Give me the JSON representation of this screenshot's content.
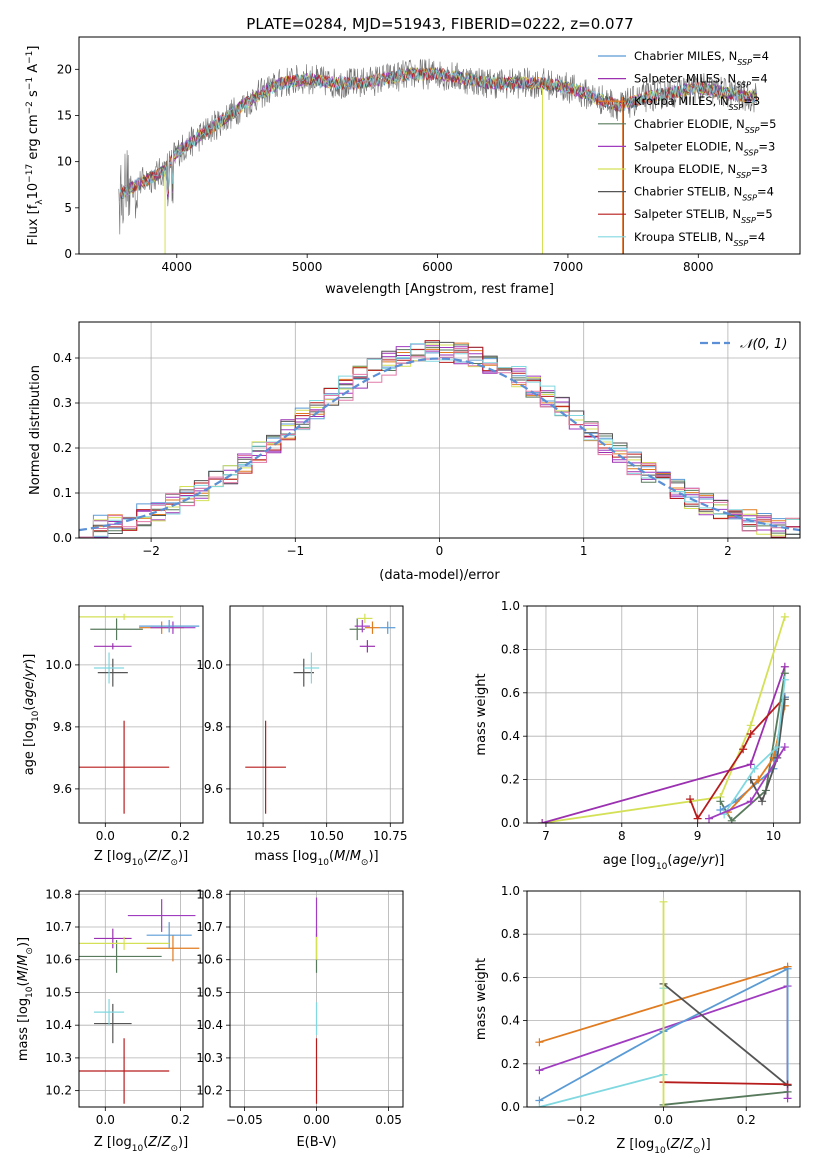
{
  "figure": {
    "title": "PLATE=0284, MJD=51943, FIBERID=0222, z=0.077"
  },
  "models": [
    {
      "name": "Chabrier MILES",
      "nssp": "4",
      "color": "#5b9bd5"
    },
    {
      "name": "Salpeter MILES",
      "nssp": "4",
      "color": "#9b30b0"
    },
    {
      "name": "Kroupa MILES",
      "nssp": "3",
      "color": "#e07b20"
    },
    {
      "name": "Chabrier ELODIE",
      "nssp": "5",
      "color": "#587a5c"
    },
    {
      "name": "Salpeter ELODIE",
      "nssp": "3",
      "color": "#a03cc0"
    },
    {
      "name": "Kroupa ELODIE",
      "nssp": "3",
      "color": "#d4e157"
    },
    {
      "name": "Chabrier STELIB",
      "nssp": "4",
      "color": "#555555"
    },
    {
      "name": "Salpeter STELIB",
      "nssp": "5",
      "color": "#b71c1c"
    },
    {
      "name": "Kroupa STELIB",
      "nssp": "4",
      "color": "#80d8e0"
    }
  ],
  "chart_data": [
    {
      "id": "spectrum",
      "type": "line",
      "xlabel": "wavelength [Angstrom, rest frame]",
      "ylabel": "Flux [f_λ 10^-17 erg cm^-2 s^-1 A^-1]",
      "xlim": [
        3250,
        8780
      ],
      "ylim": [
        0,
        23.5
      ],
      "xticks": [
        4000,
        5000,
        6000,
        7000,
        8000
      ],
      "yticks": [
        0,
        5,
        10,
        15,
        20
      ],
      "continuum": [
        [
          3500,
          6
        ],
        [
          3700,
          7.5
        ],
        [
          3900,
          9
        ],
        [
          4000,
          11
        ],
        [
          4200,
          13
        ],
        [
          4400,
          15
        ],
        [
          4600,
          17
        ],
        [
          4800,
          18.5
        ],
        [
          5000,
          19
        ],
        [
          5200,
          18.5
        ],
        [
          5400,
          18.5
        ],
        [
          5600,
          19
        ],
        [
          5800,
          19.5
        ],
        [
          6000,
          19.5
        ],
        [
          6200,
          19
        ],
        [
          6400,
          18.5
        ],
        [
          6600,
          18.5
        ],
        [
          6800,
          18.5
        ],
        [
          7000,
          18
        ],
        [
          7200,
          17
        ],
        [
          7400,
          16
        ],
        [
          7600,
          17
        ],
        [
          7800,
          17.5
        ],
        [
          8000,
          18
        ],
        [
          8200,
          17.5
        ],
        [
          8400,
          17
        ]
      ],
      "legend_position": "upper right"
    },
    {
      "id": "residuals",
      "type": "step",
      "xlabel": "(data-model)/error",
      "ylabel": "Normed distribution",
      "xlim": [
        -2.5,
        2.5
      ],
      "ylim": [
        0,
        0.48
      ],
      "xticks": [
        -2,
        -1,
        0,
        1,
        2
      ],
      "yticks": [
        0.0,
        0.1,
        0.2,
        0.3,
        0.4
      ],
      "grid": true,
      "reference_curve": "𝒩(0, 1)",
      "reference_color": "#5b8fd6",
      "legend_position": "upper right"
    },
    {
      "id": "age-vs-Z",
      "type": "errorbar",
      "xlabel": "Z [log10(Z/Z☉)]",
      "ylabel": "age [log10(age/yr)]",
      "xlim": [
        -0.07,
        0.26
      ],
      "ylim": [
        9.49,
        10.19
      ],
      "xticks": [
        0.0,
        0.2
      ],
      "yticks": [
        9.6,
        9.8,
        10.0
      ],
      "grid": true,
      "points": [
        {
          "x": 0.05,
          "y": 9.67,
          "xerr": 0.12,
          "yerr": 0.15,
          "model": 7
        },
        {
          "x": 0.02,
          "y": 9.975,
          "xerr": 0.04,
          "yerr": 0.045,
          "model": 6
        },
        {
          "x": 0.01,
          "y": 9.99,
          "xerr": 0.04,
          "yerr": 0.05,
          "model": 8
        },
        {
          "x": 0.02,
          "y": 10.06,
          "xerr": 0.05,
          "yerr": 0.01,
          "model": 1
        },
        {
          "x": 0.03,
          "y": 10.115,
          "xerr": 0.07,
          "yerr": 0.035,
          "model": 3
        },
        {
          "x": 0.15,
          "y": 10.12,
          "xerr": 0.06,
          "yerr": 0.02,
          "model": 2
        },
        {
          "x": 0.18,
          "y": 10.12,
          "xerr": 0.06,
          "yerr": 0.02,
          "model": 4
        },
        {
          "x": 0.05,
          "y": 10.155,
          "xerr": 0.13,
          "yerr": 0.01,
          "model": 5
        },
        {
          "x": 0.17,
          "y": 10.125,
          "xerr": 0.08,
          "yerr": 0.02,
          "model": 0
        }
      ]
    },
    {
      "id": "age-vs-mass",
      "type": "errorbar",
      "xlabel": "mass [log10(M/M☉)]",
      "ylabel": "",
      "xlim": [
        10.12,
        10.8
      ],
      "ylim": [
        9.49,
        10.19
      ],
      "xticks": [
        10.25,
        10.5,
        10.75
      ],
      "yticks": [
        9.6,
        9.8,
        10.0
      ],
      "grid": true,
      "points": [
        {
          "x": 10.26,
          "y": 9.67,
          "xerr": 0.08,
          "yerr": 0.15,
          "model": 7
        },
        {
          "x": 10.41,
          "y": 9.975,
          "xerr": 0.04,
          "yerr": 0.045,
          "model": 6
        },
        {
          "x": 10.44,
          "y": 9.99,
          "xerr": 0.03,
          "yerr": 0.05,
          "model": 8
        },
        {
          "x": 10.66,
          "y": 10.06,
          "xerr": 0.03,
          "yerr": 0.02,
          "model": 1
        },
        {
          "x": 10.62,
          "y": 10.115,
          "xerr": 0.03,
          "yerr": 0.035,
          "model": 3
        },
        {
          "x": 10.68,
          "y": 10.12,
          "xerr": 0.03,
          "yerr": 0.02,
          "model": 2
        },
        {
          "x": 10.64,
          "y": 10.125,
          "xerr": 0.03,
          "yerr": 0.02,
          "model": 4
        },
        {
          "x": 10.65,
          "y": 10.15,
          "xerr": 0.03,
          "yerr": 0.015,
          "model": 5
        },
        {
          "x": 10.74,
          "y": 10.12,
          "xerr": 0.03,
          "yerr": 0.02,
          "model": 0
        }
      ]
    },
    {
      "id": "weight-vs-age",
      "type": "line",
      "xlabel": "age [log10(age/yr)]",
      "ylabel": "mass weight",
      "xlim": [
        6.75,
        10.35
      ],
      "ylim": [
        0,
        1.0
      ],
      "xticks": [
        7,
        8,
        9,
        10
      ],
      "yticks": [
        0.0,
        0.2,
        0.4,
        0.6,
        0.8,
        1.0
      ],
      "grid": true,
      "series": [
        {
          "model": 5,
          "x": [
            6.95,
            9.3,
            9.7,
            10.15
          ],
          "y": [
            0.0,
            0.12,
            0.45,
            0.95
          ]
        },
        {
          "model": 1,
          "x": [
            6.95,
            9.7,
            10.15
          ],
          "y": [
            0.0,
            0.27,
            0.72
          ]
        },
        {
          "model": 7,
          "x": [
            8.9,
            9.0,
            9.6,
            9.7,
            10.15
          ],
          "y": [
            0.11,
            0.02,
            0.34,
            0.41,
            0.58
          ]
        },
        {
          "model": 3,
          "x": [
            9.3,
            9.45,
            9.9,
            10.15
          ],
          "y": [
            0.1,
            0.01,
            0.15,
            0.69
          ]
        },
        {
          "model": 0,
          "x": [
            9.3,
            9.5,
            10.0,
            10.15
          ],
          "y": [
            0.06,
            0.1,
            0.25,
            0.58
          ]
        },
        {
          "model": 2,
          "x": [
            9.4,
            9.8,
            10.0,
            10.15
          ],
          "y": [
            0.05,
            0.2,
            0.3,
            0.54
          ]
        },
        {
          "model": 6,
          "x": [
            9.7,
            9.85,
            10.05,
            10.15
          ],
          "y": [
            0.2,
            0.1,
            0.3,
            0.57
          ]
        },
        {
          "model": 8,
          "x": [
            9.35,
            9.75,
            10.05,
            10.15
          ],
          "y": [
            0.04,
            0.25,
            0.35,
            0.66
          ]
        },
        {
          "model": 4,
          "x": [
            9.15,
            9.7,
            10.15
          ],
          "y": [
            0.02,
            0.1,
            0.35
          ]
        }
      ]
    },
    {
      "id": "mass-vs-Z",
      "type": "errorbar",
      "xlabel": "Z [log10(Z/Z☉)]",
      "ylabel": "mass [log10(M/M☉)]",
      "xlim": [
        -0.07,
        0.26
      ],
      "ylim": [
        10.15,
        10.81
      ],
      "xticks": [
        0.0,
        0.2
      ],
      "yticks": [
        10.2,
        10.3,
        10.4,
        10.5,
        10.6,
        10.7,
        10.8
      ],
      "grid": true,
      "points": [
        {
          "x": 0.05,
          "y": 10.26,
          "xerr": 0.12,
          "yerr": 0.1,
          "model": 7
        },
        {
          "x": 0.02,
          "y": 10.405,
          "xerr": 0.05,
          "yerr": 0.06,
          "model": 6
        },
        {
          "x": 0.01,
          "y": 10.44,
          "xerr": 0.04,
          "yerr": 0.04,
          "model": 8
        },
        {
          "x": 0.02,
          "y": 10.665,
          "xerr": 0.05,
          "yerr": 0.03,
          "model": 1
        },
        {
          "x": 0.03,
          "y": 10.61,
          "xerr": 0.12,
          "yerr": 0.05,
          "model": 3
        },
        {
          "x": 0.18,
          "y": 10.635,
          "xerr": 0.07,
          "yerr": 0.04,
          "model": 2
        },
        {
          "x": 0.17,
          "y": 10.675,
          "xerr": 0.06,
          "yerr": 0.04,
          "model": 0
        },
        {
          "x": 0.05,
          "y": 10.65,
          "xerr": 0.12,
          "yerr": 0.02,
          "model": 5
        },
        {
          "x": 0.15,
          "y": 10.735,
          "xerr": 0.09,
          "yerr": 0.05,
          "model": 4
        }
      ]
    },
    {
      "id": "mass-vs-ebv",
      "type": "errorbar",
      "xlabel": "E(B-V)",
      "ylabel": "",
      "xlim": [
        -0.06,
        0.06
      ],
      "ylim": [
        10.15,
        10.81
      ],
      "xticks": [
        -0.05,
        0.0,
        0.05
      ],
      "yticks": [
        10.2,
        10.3,
        10.4,
        10.5,
        10.6,
        10.7,
        10.8
      ],
      "grid": true,
      "points": [
        {
          "x": 0.0,
          "y": 10.26,
          "xerr": 0.0,
          "yerr": 0.1,
          "model": 7
        },
        {
          "x": 0.0,
          "y": 10.42,
          "xerr": 0.0,
          "yerr": 0.05,
          "model": 8
        },
        {
          "x": 0.0,
          "y": 10.62,
          "xerr": 0.0,
          "yerr": 0.06,
          "model": 3
        },
        {
          "x": 0.0,
          "y": 10.65,
          "xerr": 0.0,
          "yerr": 0.05,
          "model": 5
        },
        {
          "x": 0.0,
          "y": 10.73,
          "xerr": 0.0,
          "yerr": 0.06,
          "model": 4
        }
      ]
    },
    {
      "id": "weight-vs-Z",
      "type": "line",
      "xlabel": "Z [log10(Z/Z☉)]",
      "ylabel": "mass weight",
      "xlim": [
        -0.33,
        0.33
      ],
      "ylim": [
        0,
        1.0
      ],
      "xticks": [
        -0.2,
        0.0,
        0.2
      ],
      "yticks": [
        0.0,
        0.2,
        0.4,
        0.6,
        0.8,
        1.0
      ],
      "grid": true,
      "series": [
        {
          "model": 2,
          "x": [
            -0.3,
            0.3,
            0.3
          ],
          "y": [
            0.3,
            0.65,
            0.1
          ]
        },
        {
          "model": 4,
          "x": [
            -0.3,
            0.3,
            0.3
          ],
          "y": [
            0.17,
            0.56,
            0.04
          ]
        },
        {
          "model": 0,
          "x": [
            -0.3,
            0.0,
            0.3,
            0.3
          ],
          "y": [
            0.03,
            0.35,
            0.64,
            0.1
          ]
        },
        {
          "model": 8,
          "x": [
            -0.3,
            0.0,
            0.0
          ],
          "y": [
            0.0,
            0.15,
            0.55
          ]
        },
        {
          "model": 6,
          "x": [
            0.0,
            0.3
          ],
          "y": [
            0.57,
            0.1
          ]
        },
        {
          "model": 7,
          "x": [
            0.0,
            0.3
          ],
          "y": [
            0.115,
            0.105
          ]
        },
        {
          "model": 3,
          "x": [
            0.0,
            0.3
          ],
          "y": [
            0.01,
            0.07
          ]
        },
        {
          "model": 5,
          "x": [
            0.0,
            0.0
          ],
          "y": [
            0.0,
            0.95
          ]
        }
      ]
    }
  ]
}
